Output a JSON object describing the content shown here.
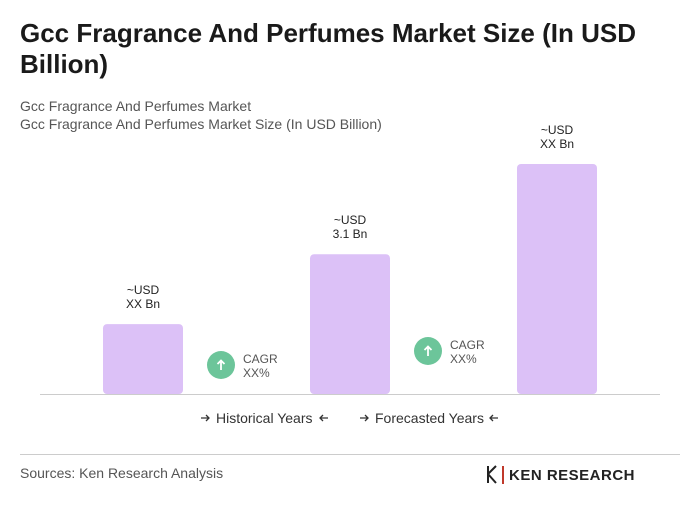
{
  "chart_data": {
    "type": "bar",
    "title": "Gcc Fragrance And Perfumes Market Size (In USD Billion)",
    "subtitle": [
      "Gcc Fragrance And Perfumes Market",
      "Gcc Fragrance And Perfumes Market Size (In USD Billion)"
    ],
    "categories": [
      null,
      null,
      null
    ],
    "values": [
      1.55,
      3.1,
      5.1
    ],
    "value_labels": [
      [
        "~USD",
        "XX Bn"
      ],
      [
        "~USD",
        "3.1 Bn"
      ],
      [
        "~USD",
        "XX Bn"
      ]
    ],
    "color": "#dcc1f7",
    "annotations": [
      [
        "CAGR",
        "XX%"
      ],
      [
        "CAGR",
        "XX%"
      ]
    ],
    "legend": [
      "Historical Years",
      "Forecasted Years"
    ]
  },
  "source": "Sources: Ken Research Analysis",
  "logo": "KEN RESEARCH"
}
